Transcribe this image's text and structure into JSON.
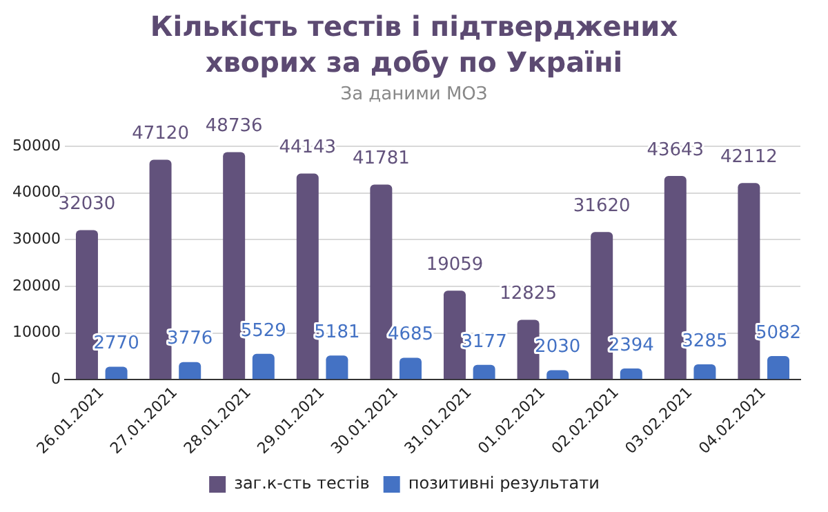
{
  "chart_data": {
    "type": "bar",
    "title": "Кількість тестів і підтверджених хворих за добу по Україні",
    "subtitle": "За даними МОЗ",
    "categories": [
      "26.01.2021",
      "27.01.2021",
      "28.01.2021",
      "29.01.2021",
      "30.01.2021",
      "31.01.2021",
      "01.02.2021",
      "02.02.2021",
      "03.02.2021",
      "04.02.2021"
    ],
    "series": [
      {
        "name": "заг.к-сть тестів",
        "color": "#62527c",
        "values": [
          32030,
          47120,
          48736,
          44143,
          41781,
          19059,
          12825,
          31620,
          43643,
          42112
        ]
      },
      {
        "name": "позитивні результати",
        "color": "#4472c4",
        "values": [
          2770,
          3776,
          5529,
          5181,
          4685,
          3177,
          2030,
          2394,
          3285,
          5082
        ]
      }
    ],
    "ylim": [
      0,
      50000
    ],
    "yticks": [
      0,
      10000,
      20000,
      30000,
      40000,
      50000
    ],
    "grid": "y",
    "legend": "bottom",
    "data_labels": true
  }
}
